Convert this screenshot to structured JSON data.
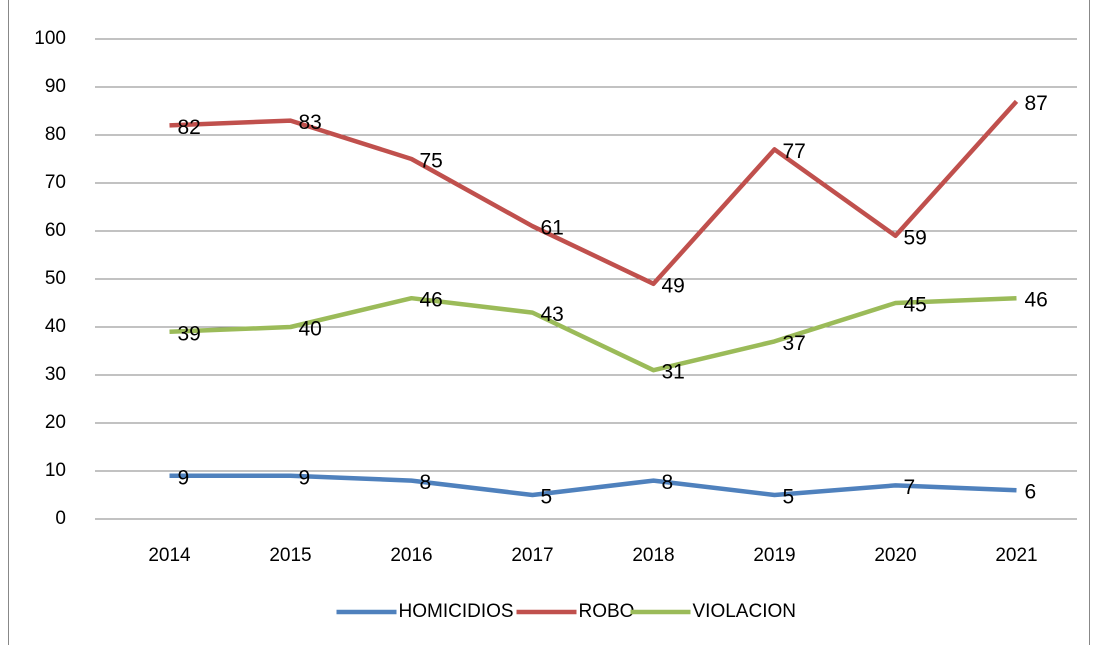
{
  "chart_data": {
    "type": "line",
    "categories": [
      "2014",
      "2015",
      "2016",
      "2017",
      "2018",
      "2019",
      "2020",
      "2021"
    ],
    "series": [
      {
        "name": "HOMICIDIOS",
        "color": "#4f81bd",
        "values": [
          9,
          9,
          8,
          5,
          8,
          5,
          7,
          6
        ]
      },
      {
        "name": "ROBO",
        "color": "#c0504d",
        "values": [
          82,
          83,
          75,
          61,
          49,
          77,
          59,
          87
        ]
      },
      {
        "name": "VIOLACION",
        "color": "#9bbb59",
        "values": [
          39,
          40,
          46,
          43,
          31,
          37,
          45,
          46
        ]
      }
    ],
    "ylim": [
      0,
      100
    ],
    "yticks": [
      0,
      10,
      20,
      30,
      40,
      50,
      60,
      70,
      80,
      90,
      100
    ],
    "grid": true,
    "data_labels": true,
    "legend": "bottom"
  }
}
